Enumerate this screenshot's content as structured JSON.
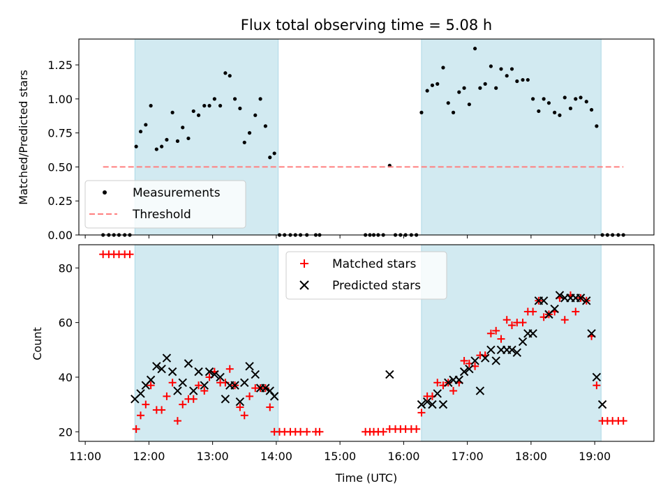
{
  "chart_data": [
    {
      "type": "scatter",
      "title": "Flux total observing time = 5.08 h",
      "ylabel": "Matched/Predicted stars",
      "xlim": [
        10.9,
        19.93
      ],
      "ylim": [
        0,
        1.44
      ],
      "yticks": [
        0.0,
        0.25,
        0.5,
        0.75,
        1.0,
        1.25
      ],
      "ytick_labels": [
        "0.00",
        "0.25",
        "0.50",
        "0.75",
        "1.00",
        "1.25"
      ],
      "shaded_spans": [
        [
          11.78,
          14.03
        ],
        [
          16.28,
          19.1
        ]
      ],
      "shade_color": "#add8e6",
      "legend_position": "lower-left",
      "series": [
        {
          "name": "Measurements",
          "marker": "dot",
          "color": "#000000",
          "x": [
            11.28,
            11.37,
            11.45,
            11.53,
            11.62,
            11.7,
            11.8,
            11.87,
            11.95,
            12.03,
            12.12,
            12.2,
            12.28,
            12.37,
            12.45,
            12.53,
            12.62,
            12.7,
            12.78,
            12.87,
            12.95,
            13.03,
            13.12,
            13.2,
            13.27,
            13.35,
            13.43,
            13.5,
            13.58,
            13.67,
            13.75,
            13.83,
            13.9,
            13.97,
            14.05,
            14.13,
            14.22,
            14.3,
            14.38,
            14.48,
            14.62,
            14.68,
            15.4,
            15.47,
            15.53,
            15.6,
            15.68,
            15.78,
            15.87,
            15.95,
            16.03,
            16.12,
            16.2,
            16.28,
            16.37,
            16.45,
            16.53,
            16.62,
            16.7,
            16.78,
            16.87,
            16.95,
            17.03,
            17.12,
            17.2,
            17.28,
            17.37,
            17.45,
            17.53,
            17.62,
            17.7,
            17.78,
            17.87,
            17.95,
            18.03,
            18.12,
            18.2,
            18.28,
            18.37,
            18.45,
            18.53,
            18.62,
            18.7,
            18.78,
            18.87,
            18.95,
            19.03,
            19.12,
            19.2,
            19.28,
            19.37,
            19.45
          ],
          "y": [
            0,
            0,
            0,
            0,
            0,
            0,
            0.65,
            0.76,
            0.81,
            0.95,
            0.63,
            0.65,
            0.7,
            0.9,
            0.69,
            0.79,
            0.71,
            0.91,
            0.88,
            0.95,
            0.95,
            1.0,
            0.95,
            1.19,
            1.17,
            1.0,
            0.93,
            0.68,
            0.75,
            0.88,
            1.0,
            0.8,
            0.57,
            0.6,
            0,
            0,
            0,
            0,
            0,
            0,
            0,
            0,
            0,
            0,
            0,
            0,
            0,
            0.51,
            0,
            0,
            0,
            0,
            0,
            0.9,
            1.06,
            1.1,
            1.11,
            1.23,
            0.97,
            0.9,
            1.05,
            1.08,
            0.96,
            1.37,
            1.08,
            1.11,
            1.24,
            1.08,
            1.22,
            1.17,
            1.22,
            1.13,
            1.14,
            1.14,
            1.0,
            0.91,
            1.0,
            0.97,
            0.9,
            0.88,
            1.01,
            0.93,
            1.0,
            1.01,
            0.98,
            0.92,
            0.8,
            0,
            0,
            0,
            0,
            0
          ]
        },
        {
          "name": "Threshold",
          "line": "dashed",
          "color": "#ff7f7f",
          "x": [
            11.28,
            19.45
          ],
          "y": [
            0.5,
            0.5
          ]
        }
      ]
    },
    {
      "type": "scatter",
      "title": "",
      "xlabel": "Time (UTC)",
      "ylabel": "Count",
      "xlim": [
        10.9,
        19.93
      ],
      "ylim": [
        16.5,
        88.5
      ],
      "xticks": [
        11,
        12,
        13,
        14,
        15,
        16,
        17,
        18,
        19
      ],
      "xtick_labels": [
        "11:00",
        "12:00",
        "13:00",
        "14:00",
        "15:00",
        "16:00",
        "17:00",
        "18:00",
        "19:00"
      ],
      "yticks": [
        20,
        40,
        60,
        80
      ],
      "ytick_labels": [
        "20",
        "40",
        "60",
        "80"
      ],
      "shaded_spans": [
        [
          11.78,
          14.03
        ],
        [
          16.28,
          19.1
        ]
      ],
      "shade_color": "#add8e6",
      "legend_position": "upper-center",
      "series": [
        {
          "name": "Matched stars",
          "marker": "plus",
          "color": "#ff0000",
          "x": [
            11.28,
            11.37,
            11.45,
            11.53,
            11.62,
            11.7,
            11.8,
            11.87,
            11.95,
            12.03,
            12.12,
            12.2,
            12.28,
            12.37,
            12.45,
            12.53,
            12.62,
            12.7,
            12.78,
            12.87,
            12.95,
            13.03,
            13.12,
            13.2,
            13.27,
            13.35,
            13.43,
            13.5,
            13.58,
            13.67,
            13.75,
            13.83,
            13.9,
            13.97,
            14.05,
            14.13,
            14.22,
            14.3,
            14.38,
            14.48,
            14.62,
            14.68,
            15.4,
            15.47,
            15.53,
            15.6,
            15.68,
            15.78,
            15.87,
            15.95,
            16.03,
            16.12,
            16.2,
            16.28,
            16.37,
            16.45,
            16.53,
            16.62,
            16.7,
            16.78,
            16.87,
            16.95,
            17.03,
            17.12,
            17.2,
            17.28,
            17.37,
            17.45,
            17.53,
            17.62,
            17.7,
            17.78,
            17.87,
            17.95,
            18.03,
            18.12,
            18.2,
            18.28,
            18.37,
            18.45,
            18.53,
            18.62,
            18.7,
            18.78,
            18.87,
            18.95,
            19.03,
            19.12,
            19.2,
            19.28,
            19.37,
            19.45
          ],
          "y": [
            85,
            85,
            85,
            85,
            85,
            85,
            21,
            26,
            30,
            37,
            28,
            28,
            33,
            38,
            24,
            30,
            32,
            32,
            37,
            35,
            40,
            42,
            38,
            38,
            43,
            37,
            29,
            26,
            33,
            36,
            36,
            36,
            29,
            20,
            20,
            20,
            20,
            20,
            20,
            20,
            20,
            20,
            20,
            20,
            20,
            20,
            20,
            21,
            21,
            21,
            21,
            21,
            21,
            27,
            33,
            33,
            38,
            37,
            38,
            35,
            38,
            46,
            45,
            44,
            48,
            48,
            56,
            57,
            54,
            61,
            59,
            60,
            60,
            64,
            64,
            68,
            62,
            63,
            64,
            69,
            61,
            70,
            64,
            69,
            68,
            55,
            37,
            24,
            24,
            24,
            24,
            24
          ]
        },
        {
          "name": "Predicted stars",
          "marker": "x",
          "color": "#000000",
          "x": [
            11.78,
            11.87,
            11.95,
            12.03,
            12.12,
            12.2,
            12.28,
            12.37,
            12.45,
            12.53,
            12.62,
            12.7,
            12.78,
            12.87,
            12.95,
            13.03,
            13.12,
            13.2,
            13.27,
            13.35,
            13.43,
            13.5,
            13.58,
            13.67,
            13.75,
            13.83,
            13.9,
            13.97,
            15.78,
            16.28,
            16.37,
            16.45,
            16.53,
            16.62,
            16.7,
            16.78,
            16.87,
            16.95,
            17.03,
            17.12,
            17.2,
            17.28,
            17.37,
            17.45,
            17.53,
            17.62,
            17.7,
            17.78,
            17.87,
            17.95,
            18.03,
            18.12,
            18.2,
            18.28,
            18.37,
            18.45,
            18.53,
            18.62,
            18.7,
            18.78,
            18.87,
            18.95,
            19.03,
            19.12
          ],
          "y": [
            32,
            34,
            37,
            39,
            44,
            43,
            47,
            42,
            35,
            38,
            45,
            35,
            42,
            37,
            42,
            41,
            40,
            32,
            37,
            37,
            31,
            38,
            44,
            41,
            36,
            36,
            35,
            33,
            41,
            30,
            31,
            30,
            34,
            30,
            38,
            39,
            39,
            42,
            43,
            46,
            35,
            47,
            50,
            46,
            50,
            50,
            50,
            49,
            53,
            56,
            56,
            68,
            68,
            63,
            65,
            70,
            69,
            69,
            69,
            69,
            68,
            56,
            40,
            30
          ]
        }
      ]
    }
  ]
}
